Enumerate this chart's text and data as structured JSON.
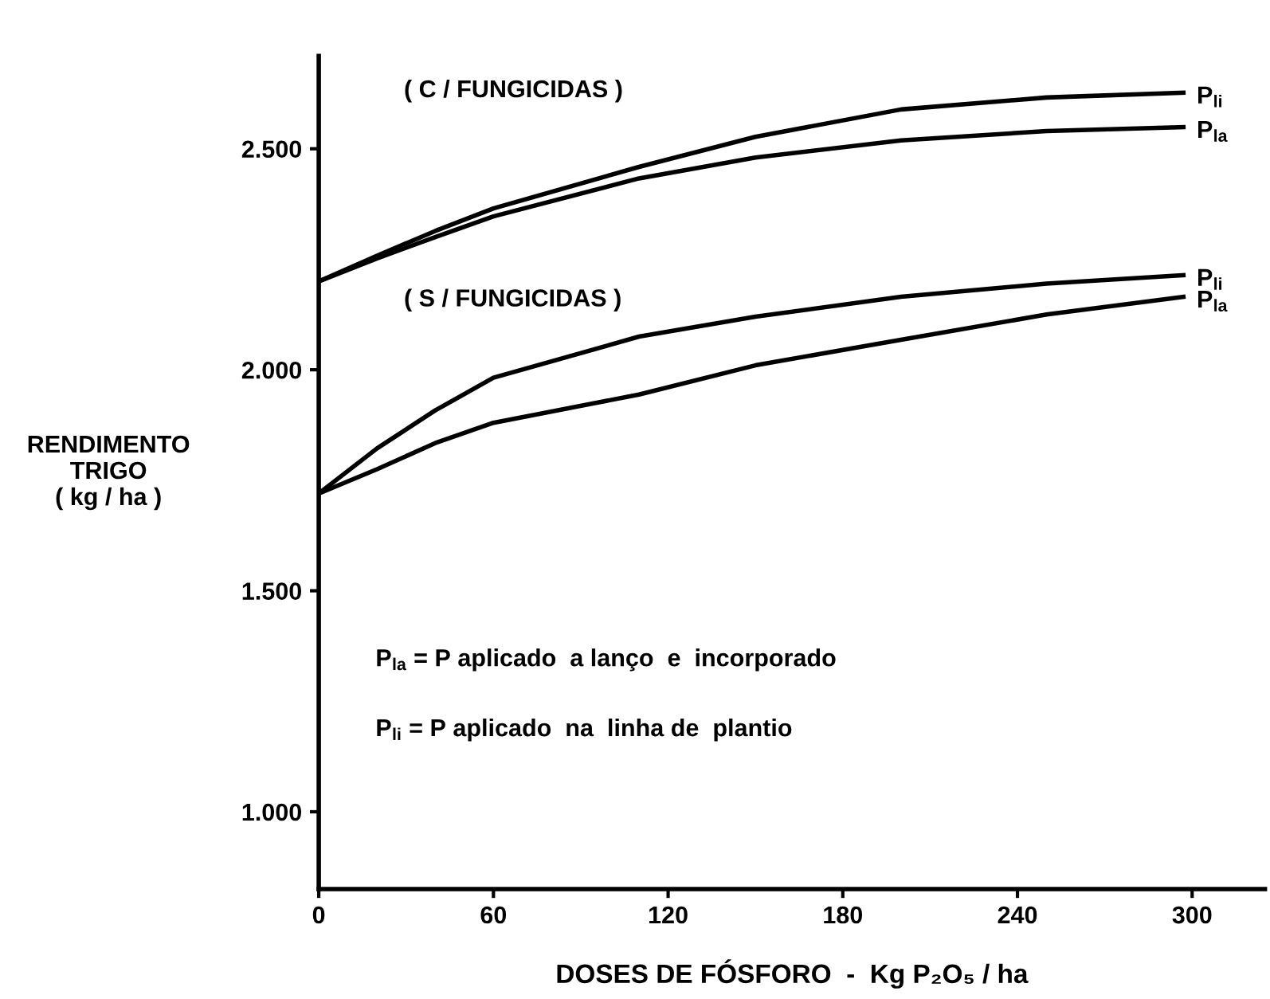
{
  "chart_data": {
    "type": "line",
    "xlabel": "DOSES DE FÓSFORO  -  Kg P₂O₅ / ha",
    "ylabel": "RENDIMENTO\nTRIGO\n( kg / ha )",
    "x": [
      0,
      20,
      40,
      60,
      110,
      150,
      200,
      250,
      297
    ],
    "series": [
      {
        "name": "P$_{li}$",
        "color": "#000000",
        "values": [
          2200,
          2258,
          2314,
          2365,
          2459,
          2527,
          2589,
          2616,
          2627
        ]
      },
      {
        "name": "P$_{la}$",
        "color": "#000000",
        "values": [
          2200,
          2252,
          2300,
          2347,
          2433,
          2480,
          2519,
          2540,
          2549
        ]
      },
      {
        "name": "P$_{li}$",
        "color": "#000000",
        "values": [
          1720,
          1822,
          1908,
          1982,
          2075,
          2120,
          2165,
          2195,
          2214
        ]
      },
      {
        "name": "P$_{la}$",
        "color": "#000000",
        "values": [
          1720,
          1775,
          1834,
          1880,
          1944,
          2010,
          2068,
          2125,
          2165
        ]
      }
    ],
    "xlim": [
      0,
      325
    ],
    "ylim": [
      825,
      2710
    ],
    "xticks": [
      0,
      60,
      120,
      180,
      240,
      300
    ],
    "yticks": [
      {
        "value": 1000,
        "label": "1.000"
      },
      {
        "value": 1500,
        "label": "1.500"
      },
      {
        "value": 2000,
        "label": "2.000"
      },
      {
        "value": 2500,
        "label": "2.500"
      }
    ],
    "annotations": [
      "( C / FUNGICIDAS )",
      "( S / FUNGICIDAS )",
      "P$_{la}$ = P aplicado  a lanço  e  incorporado",
      "P$_{li}$ = P aplicado  na  linha de  plantio"
    ],
    "grid": false,
    "legend": false,
    "marker": "none",
    "line_style": "solid"
  }
}
